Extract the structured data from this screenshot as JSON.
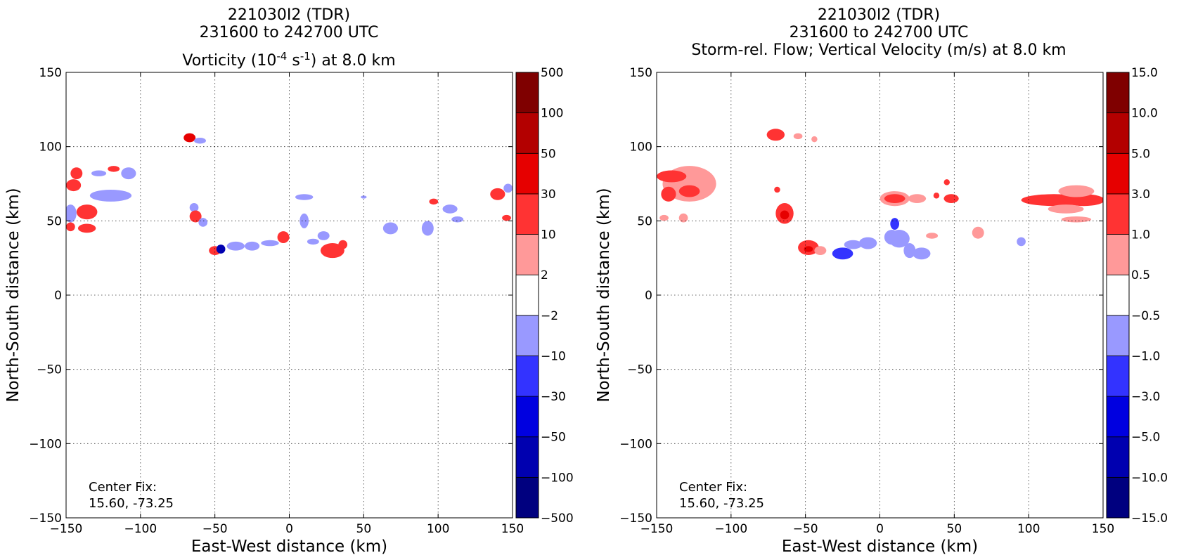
{
  "chart_data": [
    {
      "type": "heatmap",
      "title_lines": [
        "221030I2 (TDR)",
        "231600 to 242700 UTC"
      ],
      "title_line3": {
        "pre": "Vorticity (10",
        "sup1": "-4",
        "mid": " s",
        "sup2": "-1",
        "post": ") at 8.0 km"
      },
      "xlabel": "East-West distance (km)",
      "ylabel": "North-South distance (km)",
      "xlim": [
        -150,
        150
      ],
      "ylim": [
        -150,
        150
      ],
      "xticks": [
        -150,
        -100,
        -50,
        0,
        50,
        100,
        150
      ],
      "yticks": [
        -150,
        -100,
        -50,
        0,
        50,
        100,
        150
      ],
      "tick_labels": [
        "−150",
        "−100",
        "−50",
        "0",
        "50",
        "100",
        "150"
      ],
      "grid": true,
      "annotation": [
        "Center Fix:",
        "15.60, -73.25"
      ],
      "colorbar": {
        "labels": [
          "−500",
          "−100",
          "−50",
          "−30",
          "−10",
          "−2",
          "2",
          "10",
          "30",
          "50",
          "100",
          "500"
        ],
        "colors": [
          "#00007f",
          "#0000b0",
          "#0000e0",
          "#3333ff",
          "#9999ff",
          "#ffffff",
          "#ff9999",
          "#ff3333",
          "#e60000",
          "#b30000",
          "#7f0000"
        ]
      },
      "regions": [
        {
          "x": -143,
          "y": 82,
          "rx": 4,
          "ry": 4,
          "level": 7
        },
        {
          "x": -145,
          "y": 74,
          "rx": 5,
          "ry": 4,
          "level": 7
        },
        {
          "x": -128,
          "y": 82,
          "rx": 5,
          "ry": 2,
          "level": 4
        },
        {
          "x": -118,
          "y": 85,
          "rx": 4,
          "ry": 2,
          "level": 7
        },
        {
          "x": -108,
          "y": 82,
          "rx": 5,
          "ry": 4,
          "level": 4
        },
        {
          "x": -120,
          "y": 67,
          "rx": 14,
          "ry": 4,
          "level": 4
        },
        {
          "x": -136,
          "y": 56,
          "rx": 7,
          "ry": 5,
          "level": 7
        },
        {
          "x": -147,
          "y": 55,
          "rx": 4,
          "ry": 6,
          "level": 4
        },
        {
          "x": -136,
          "y": 45,
          "rx": 6,
          "ry": 3,
          "level": 7
        },
        {
          "x": -147,
          "y": 46,
          "rx": 3,
          "ry": 3,
          "level": 7
        },
        {
          "x": -67,
          "y": 106,
          "rx": 4,
          "ry": 3,
          "level": 8
        },
        {
          "x": -60,
          "y": 104,
          "rx": 4,
          "ry": 2,
          "level": 4
        },
        {
          "x": -64,
          "y": 59,
          "rx": 3,
          "ry": 3,
          "level": 4
        },
        {
          "x": -63,
          "y": 53,
          "rx": 4,
          "ry": 4,
          "level": 7
        },
        {
          "x": -58,
          "y": 49,
          "rx": 3,
          "ry": 3,
          "level": 4
        },
        {
          "x": -50,
          "y": 30,
          "rx": 4,
          "ry": 3,
          "level": 7
        },
        {
          "x": -46,
          "y": 31,
          "rx": 3,
          "ry": 3,
          "level": 1
        },
        {
          "x": -36,
          "y": 33,
          "rx": 6,
          "ry": 3,
          "level": 4
        },
        {
          "x": -25,
          "y": 33,
          "rx": 5,
          "ry": 3,
          "level": 4
        },
        {
          "x": -13,
          "y": 35,
          "rx": 6,
          "ry": 2,
          "level": 4
        },
        {
          "x": -4,
          "y": 39,
          "rx": 4,
          "ry": 4,
          "level": 7
        },
        {
          "x": 10,
          "y": 66,
          "rx": 6,
          "ry": 2,
          "level": 4
        },
        {
          "x": 10,
          "y": 50,
          "rx": 3,
          "ry": 5,
          "level": 4
        },
        {
          "x": 23,
          "y": 40,
          "rx": 4,
          "ry": 3,
          "level": 4
        },
        {
          "x": 16,
          "y": 36,
          "rx": 4,
          "ry": 2,
          "level": 4
        },
        {
          "x": 29,
          "y": 30,
          "rx": 8,
          "ry": 5,
          "level": 7
        },
        {
          "x": 36,
          "y": 34,
          "rx": 3,
          "ry": 3,
          "level": 7
        },
        {
          "x": 50,
          "y": 66,
          "rx": 2,
          "ry": 1,
          "level": 4
        },
        {
          "x": 68,
          "y": 45,
          "rx": 5,
          "ry": 4,
          "level": 4
        },
        {
          "x": 93,
          "y": 45,
          "rx": 4,
          "ry": 5,
          "level": 4
        },
        {
          "x": 108,
          "y": 58,
          "rx": 5,
          "ry": 3,
          "level": 4
        },
        {
          "x": 113,
          "y": 51,
          "rx": 4,
          "ry": 2,
          "level": 4
        },
        {
          "x": 97,
          "y": 63,
          "rx": 3,
          "ry": 2,
          "level": 7
        },
        {
          "x": 140,
          "y": 68,
          "rx": 5,
          "ry": 4,
          "level": 7
        },
        {
          "x": 147,
          "y": 72,
          "rx": 3,
          "ry": 3,
          "level": 4
        },
        {
          "x": 146,
          "y": 52,
          "rx": 3,
          "ry": 2,
          "level": 7
        }
      ]
    },
    {
      "type": "heatmap",
      "title_lines": [
        "221030I2 (TDR)",
        "231600 to 242700 UTC",
        "Storm-rel. Flow; Vertical Velocity (m/s) at 8.0 km"
      ],
      "xlabel": "East-West distance (km)",
      "ylabel": "North-South distance (km)",
      "xlim": [
        -150,
        150
      ],
      "ylim": [
        -150,
        150
      ],
      "xticks": [
        -150,
        -100,
        -50,
        0,
        50,
        100,
        150
      ],
      "yticks": [
        -150,
        -100,
        -50,
        0,
        50,
        100,
        150
      ],
      "tick_labels": [
        "−150",
        "−100",
        "−50",
        "0",
        "50",
        "100",
        "150"
      ],
      "grid": true,
      "annotation": [
        "Center Fix:",
        "15.60, -73.25"
      ],
      "colorbar": {
        "labels": [
          "−15.0",
          "−10.0",
          "−5.0",
          "−3.0",
          "−1.0",
          "−0.5",
          "0.5",
          "1.0",
          "3.0",
          "5.0",
          "10.0",
          "15.0"
        ],
        "colors": [
          "#00007f",
          "#0000b0",
          "#0000e0",
          "#3333ff",
          "#9999ff",
          "#ffffff",
          "#ff9999",
          "#ff3333",
          "#e60000",
          "#b30000",
          "#7f0000"
        ]
      },
      "regions": [
        {
          "x": -128,
          "y": 75,
          "rx": 18,
          "ry": 12,
          "level": 6
        },
        {
          "x": -140,
          "y": 80,
          "rx": 10,
          "ry": 4,
          "level": 7
        },
        {
          "x": -128,
          "y": 70,
          "rx": 7,
          "ry": 4,
          "level": 7
        },
        {
          "x": -142,
          "y": 68,
          "rx": 5,
          "ry": 5,
          "level": 7
        },
        {
          "x": -145,
          "y": 52,
          "rx": 3,
          "ry": 2,
          "level": 6
        },
        {
          "x": -132,
          "y": 52,
          "rx": 3,
          "ry": 3,
          "level": 6
        },
        {
          "x": -70,
          "y": 108,
          "rx": 6,
          "ry": 4,
          "level": 7
        },
        {
          "x": -55,
          "y": 107,
          "rx": 3,
          "ry": 2,
          "level": 6
        },
        {
          "x": -44,
          "y": 105,
          "rx": 2,
          "ry": 2,
          "level": 6
        },
        {
          "x": -69,
          "y": 71,
          "rx": 2,
          "ry": 2,
          "level": 7
        },
        {
          "x": -64,
          "y": 55,
          "rx": 6,
          "ry": 7,
          "level": 7
        },
        {
          "x": -64,
          "y": 54,
          "rx": 3,
          "ry": 3,
          "level": 8
        },
        {
          "x": -48,
          "y": 32,
          "rx": 7,
          "ry": 5,
          "level": 7
        },
        {
          "x": -48,
          "y": 31,
          "rx": 3,
          "ry": 2,
          "level": 8
        },
        {
          "x": -40,
          "y": 30,
          "rx": 4,
          "ry": 3,
          "level": 6
        },
        {
          "x": -25,
          "y": 28,
          "rx": 7,
          "ry": 4,
          "level": 3
        },
        {
          "x": -18,
          "y": 34,
          "rx": 6,
          "ry": 3,
          "level": 4
        },
        {
          "x": -8,
          "y": 35,
          "rx": 6,
          "ry": 4,
          "level": 4
        },
        {
          "x": 8,
          "y": 39,
          "rx": 5,
          "ry": 5,
          "level": 4
        },
        {
          "x": 13,
          "y": 38,
          "rx": 7,
          "ry": 6,
          "level": 4
        },
        {
          "x": 20,
          "y": 30,
          "rx": 4,
          "ry": 5,
          "level": 4
        },
        {
          "x": 10,
          "y": 48,
          "rx": 3,
          "ry": 4,
          "level": 3
        },
        {
          "x": 28,
          "y": 28,
          "rx": 6,
          "ry": 4,
          "level": 4
        },
        {
          "x": 35,
          "y": 40,
          "rx": 4,
          "ry": 2,
          "level": 6
        },
        {
          "x": 10,
          "y": 65,
          "rx": 10,
          "ry": 5,
          "level": 6
        },
        {
          "x": 10,
          "y": 65,
          "rx": 7,
          "ry": 3,
          "level": 7
        },
        {
          "x": 25,
          "y": 65,
          "rx": 6,
          "ry": 3,
          "level": 6
        },
        {
          "x": 38,
          "y": 67,
          "rx": 2,
          "ry": 2,
          "level": 7
        },
        {
          "x": 48,
          "y": 65,
          "rx": 5,
          "ry": 3,
          "level": 7
        },
        {
          "x": 45,
          "y": 76,
          "rx": 2,
          "ry": 2,
          "level": 7
        },
        {
          "x": 66,
          "y": 42,
          "rx": 4,
          "ry": 4,
          "level": 6
        },
        {
          "x": 95,
          "y": 36,
          "rx": 3,
          "ry": 3,
          "level": 4
        },
        {
          "x": 117,
          "y": 64,
          "rx": 22,
          "ry": 4,
          "level": 7
        },
        {
          "x": 137,
          "y": 64,
          "rx": 14,
          "ry": 4,
          "level": 7
        },
        {
          "x": 132,
          "y": 70,
          "rx": 12,
          "ry": 4,
          "level": 6
        },
        {
          "x": 125,
          "y": 58,
          "rx": 12,
          "ry": 3,
          "level": 6
        },
        {
          "x": 132,
          "y": 51,
          "rx": 10,
          "ry": 2,
          "level": 6
        }
      ]
    }
  ]
}
